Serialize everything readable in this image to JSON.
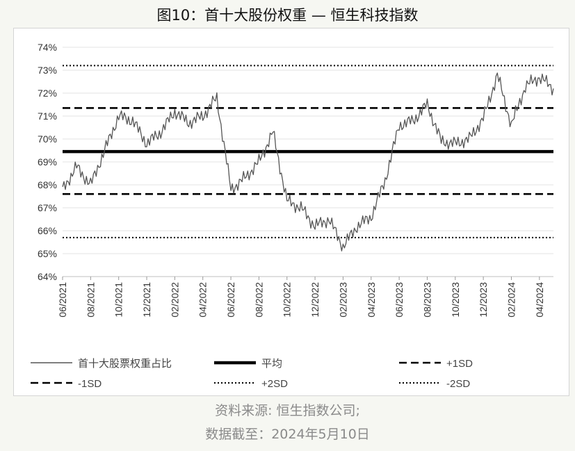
{
  "title": "图10：首十大股份权重 — 恒生科技指数",
  "footer": {
    "source": "资料来源: 恒生指数公司;",
    "cutoff": "数据截至：2024年5月10日"
  },
  "chart_data": {
    "type": "line",
    "title": "图10：首十大股份权重 — 恒生科技指数",
    "xlabel": "",
    "ylabel": "",
    "ylim": [
      64,
      74
    ],
    "yticks": [
      "64%",
      "65%",
      "66%",
      "67%",
      "68%",
      "69%",
      "70%",
      "71%",
      "72%",
      "73%",
      "74%"
    ],
    "xticks": [
      "06/2021",
      "08/2021",
      "10/2021",
      "12/2021",
      "02/2022",
      "04/2022",
      "06/2022",
      "08/2022",
      "10/2022",
      "12/2022",
      "02/2023",
      "04/2023",
      "06/2023",
      "08/2023",
      "10/2023",
      "12/2023",
      "02/2024",
      "04/2024"
    ],
    "grid": "horizontal",
    "legend_position": "bottom",
    "series": [
      {
        "name": "首十大股票权重占比",
        "style": "solid-thin",
        "color": "#555555",
        "x": [
          "2021-06",
          "2021-07",
          "2021-08",
          "2021-09",
          "2021-10",
          "2021-11",
          "2021-12",
          "2022-01",
          "2022-02",
          "2022-03",
          "2022-04",
          "2022-05",
          "2022-06",
          "2022-07",
          "2022-08",
          "2022-09",
          "2022-10",
          "2022-11",
          "2022-12",
          "2023-01",
          "2023-02",
          "2023-03",
          "2023-04",
          "2023-05",
          "2023-06",
          "2023-07",
          "2023-08",
          "2023-09",
          "2023-10",
          "2023-11",
          "2023-12",
          "2024-01",
          "2024-02",
          "2024-03",
          "2024-04",
          "2024-05"
        ],
        "values": [
          67.8,
          68.8,
          68.0,
          69.5,
          71.0,
          70.8,
          69.8,
          70.3,
          71.2,
          70.7,
          71.0,
          71.8,
          67.8,
          68.3,
          69.0,
          70.3,
          67.3,
          67.0,
          66.2,
          66.5,
          65.3,
          66.2,
          66.6,
          68.2,
          70.6,
          70.8,
          71.5,
          69.9,
          69.8,
          70.0,
          70.9,
          72.8,
          70.6,
          72.3,
          72.7,
          72.2
        ]
      },
      {
        "name": "平均",
        "style": "solid-thick",
        "color": "#000000",
        "value": 69.45
      },
      {
        "name": "+1SD",
        "style": "dashed",
        "color": "#000000",
        "value": 71.35
      },
      {
        "name": "-1SD",
        "style": "dashed",
        "color": "#000000",
        "value": 67.6
      },
      {
        "name": "+2SD",
        "style": "dotted",
        "color": "#000000",
        "value": 73.2
      },
      {
        "name": "-2SD",
        "style": "dotted",
        "color": "#000000",
        "value": 65.7
      }
    ]
  }
}
